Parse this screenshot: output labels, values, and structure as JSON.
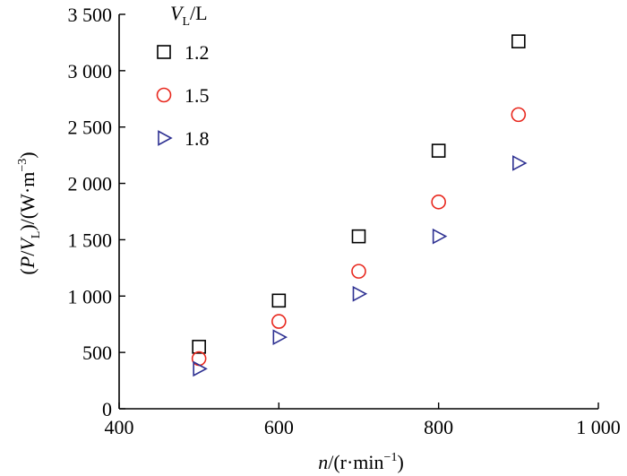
{
  "chart_data": {
    "type": "scatter",
    "xlabel": {
      "italic": "n",
      "rest": "/(r·min",
      "sup": "−1",
      "close": ")"
    },
    "ylabel": {
      "p1": "(",
      "i1": "P",
      "p2": "/",
      "i2": "V",
      "sub": "L",
      "p3": ")/(W·m",
      "sup": "−3",
      "p4": ")"
    },
    "legend_title": {
      "italic": "V",
      "sub": "L",
      "rest": "/L"
    },
    "xlim": [
      400,
      1000
    ],
    "ylim": [
      0,
      3500
    ],
    "x_ticks": [
      400,
      600,
      800,
      1000
    ],
    "x_tick_labels": [
      "400",
      "600",
      "800",
      "1 000"
    ],
    "y_ticks": [
      0,
      500,
      1000,
      1500,
      2000,
      2500,
      3000,
      3500
    ],
    "y_tick_labels": [
      "0",
      "500",
      "1 000",
      "1 500",
      "2 000",
      "2 500",
      "3 000",
      "3 500"
    ],
    "legend_placement": "top-left",
    "grid": false,
    "series": [
      {
        "name": "1.2",
        "marker": "square",
        "color": "#000000",
        "x": [
          500,
          600,
          700,
          800,
          900
        ],
        "y": [
          550,
          960,
          1530,
          2290,
          3260
        ]
      },
      {
        "name": "1.5",
        "marker": "circle",
        "color": "#e8281e",
        "x": [
          500,
          600,
          700,
          800,
          900
        ],
        "y": [
          445,
          775,
          1220,
          1835,
          2610
        ]
      },
      {
        "name": "1.8",
        "marker": "triangle-right",
        "color": "#2e3192",
        "x": [
          500,
          600,
          700,
          800,
          900
        ],
        "y": [
          355,
          635,
          1020,
          1530,
          2180
        ]
      }
    ]
  }
}
